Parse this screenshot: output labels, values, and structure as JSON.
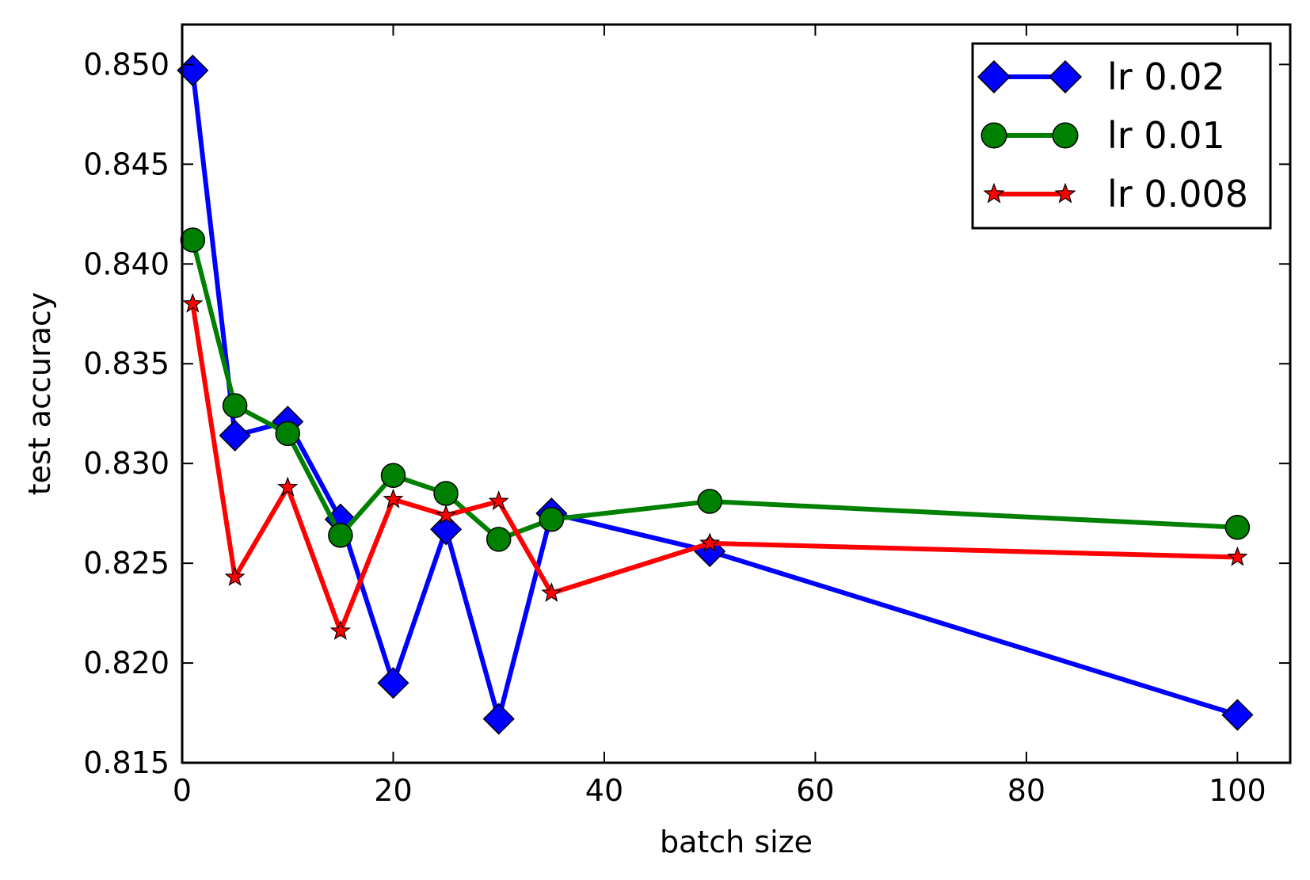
{
  "chart_data": {
    "type": "line",
    "title": "",
    "xlabel": "batch size",
    "ylabel": "test accuracy",
    "xlim": [
      0,
      105
    ],
    "ylim": [
      0.815,
      0.852
    ],
    "xticks": [
      0,
      20,
      40,
      60,
      80,
      100
    ],
    "yticks": [
      0.815,
      0.82,
      0.825,
      0.83,
      0.835,
      0.84,
      0.845,
      0.85
    ],
    "grid": false,
    "legend_position": "top-right",
    "series": [
      {
        "name": "lr 0.02",
        "color": "#0000ff",
        "marker": "diamond",
        "x": [
          1,
          5,
          10,
          15,
          20,
          25,
          30,
          35,
          50,
          100
        ],
        "y": [
          0.8497,
          0.8314,
          0.8321,
          0.8272,
          0.819,
          0.8267,
          0.8172,
          0.8275,
          0.8256,
          0.8174
        ]
      },
      {
        "name": "lr 0.01",
        "color": "#008000",
        "marker": "circle",
        "x": [
          1,
          5,
          10,
          15,
          20,
          25,
          30,
          35,
          50,
          100
        ],
        "y": [
          0.8412,
          0.8329,
          0.8315,
          0.8264,
          0.8294,
          0.8285,
          0.8262,
          0.8272,
          0.8281,
          0.8268
        ]
      },
      {
        "name": "lr 0.008",
        "color": "#ff0000",
        "marker": "star",
        "x": [
          1,
          5,
          10,
          15,
          20,
          25,
          30,
          35,
          50,
          100
        ],
        "y": [
          0.838,
          0.8243,
          0.8288,
          0.8216,
          0.8282,
          0.8274,
          0.8281,
          0.8235,
          0.826,
          0.8253
        ]
      }
    ]
  }
}
